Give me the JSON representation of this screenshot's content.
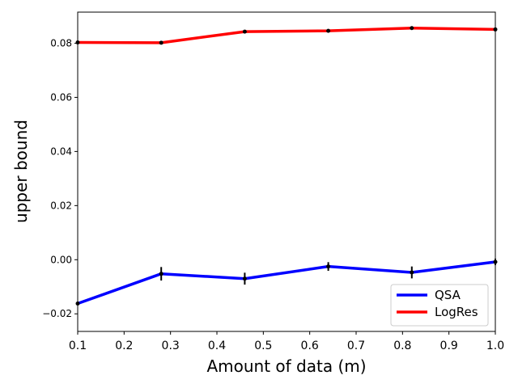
{
  "chart_data": {
    "type": "line",
    "title": "",
    "xlabel": "Amount of data (m)",
    "ylabel": "upper bound",
    "xlim": [
      0.1,
      1.0
    ],
    "ylim": [
      -0.0265,
      0.0915
    ],
    "x_ticks": [
      0.1,
      0.2,
      0.3,
      0.4,
      0.5,
      0.6,
      0.7,
      0.8,
      0.9,
      1.0
    ],
    "x_tick_labels": [
      "0.1",
      "0.2",
      "0.3",
      "0.4",
      "0.5",
      "0.6",
      "0.7",
      "0.8",
      "0.9",
      "1.0"
    ],
    "y_ticks": [
      -0.02,
      0.0,
      0.02,
      0.04,
      0.06,
      0.08
    ],
    "y_tick_labels": [
      "−0.02",
      "0.00",
      "0.02",
      "0.04",
      "0.06",
      "0.08"
    ],
    "grid": false,
    "legend_position": "bottom-right",
    "series": [
      {
        "name": "QSA",
        "color": "#0000ff",
        "x": [
          0.1,
          0.28,
          0.46,
          0.64,
          0.82,
          1.0
        ],
        "values": [
          -0.0162,
          -0.0052,
          -0.007,
          -0.0025,
          -0.0047,
          -0.0008
        ],
        "errors": [
          0.0004,
          0.0025,
          0.0022,
          0.0016,
          0.0022,
          0.0012
        ]
      },
      {
        "name": "LogRes",
        "color": "#ff0000",
        "x": [
          0.1,
          0.28,
          0.46,
          0.64,
          0.82,
          1.0
        ],
        "values": [
          0.0803,
          0.0802,
          0.0843,
          0.0846,
          0.0856,
          0.0851
        ],
        "errors": [
          0.0003,
          0.0003,
          0.0003,
          0.0003,
          0.0003,
          0.0003
        ]
      }
    ]
  }
}
